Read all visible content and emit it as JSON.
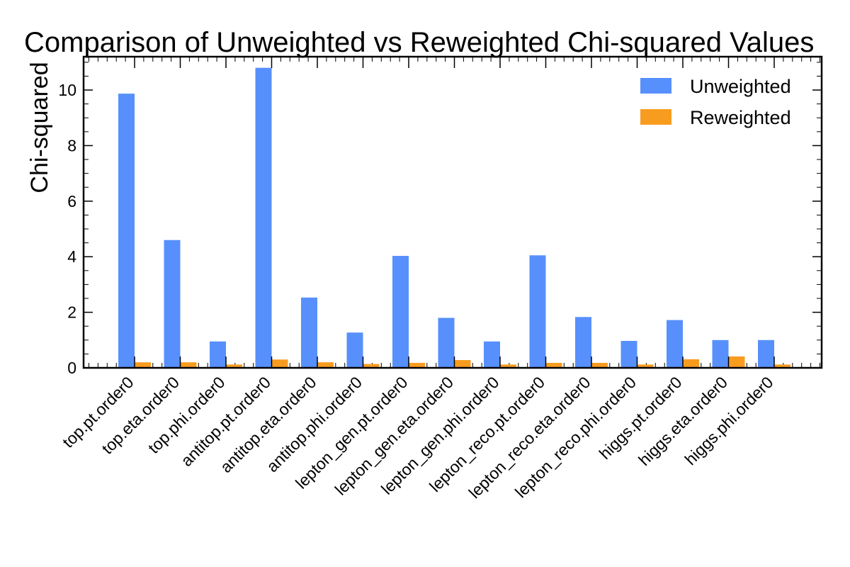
{
  "chart_data": {
    "type": "bar",
    "title": "Comparison of Unweighted vs Reweighted Chi-squared Values",
    "xlabel": "",
    "ylabel": "Chi-squared",
    "ylim": [
      0,
      11.2
    ],
    "yticks": [
      0,
      2,
      4,
      6,
      8,
      10
    ],
    "legend_position": "top-right",
    "categories": [
      "top.pt.order0",
      "top.eta.order0",
      "top.phi.order0",
      "antitop.pt.order0",
      "antitop.eta.order0",
      "antitop.phi.order0",
      "lepton_gen.pt.order0",
      "lepton_gen.eta.order0",
      "lepton_gen.phi.order0",
      "lepton_reco.pt.order0",
      "lepton_reco.eta.order0",
      "lepton_reco.phi.order0",
      "higgs.pt.order0",
      "higgs.eta.order0",
      "higgs.phi.order0"
    ],
    "series": [
      {
        "name": "Unweighted",
        "color": "#5790fc",
        "values": [
          9.87,
          4.6,
          0.95,
          10.8,
          2.53,
          1.27,
          4.03,
          1.8,
          0.95,
          4.05,
          1.83,
          0.97,
          1.72,
          1.0,
          1.0
        ]
      },
      {
        "name": "Reweighted",
        "color": "#f89c20",
        "values": [
          0.2,
          0.2,
          0.12,
          0.3,
          0.2,
          0.14,
          0.18,
          0.28,
          0.12,
          0.18,
          0.18,
          0.12,
          0.31,
          0.41,
          0.12
        ]
      }
    ]
  }
}
